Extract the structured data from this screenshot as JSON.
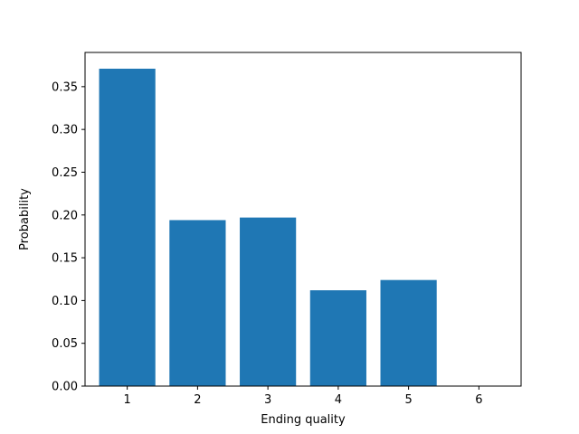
{
  "chart_data": {
    "type": "bar",
    "categories": [
      "1",
      "2",
      "3",
      "4",
      "5",
      "6"
    ],
    "values": [
      0.371,
      0.194,
      0.197,
      0.112,
      0.124,
      0.0
    ],
    "xlabel": "Ending quality",
    "ylabel": "Probability",
    "ylim": [
      0.0,
      0.39
    ],
    "yticks": [
      "0.00",
      "0.05",
      "0.10",
      "0.15",
      "0.20",
      "0.25",
      "0.30",
      "0.35"
    ],
    "bar_color": "#1f77b4",
    "grid": false
  }
}
